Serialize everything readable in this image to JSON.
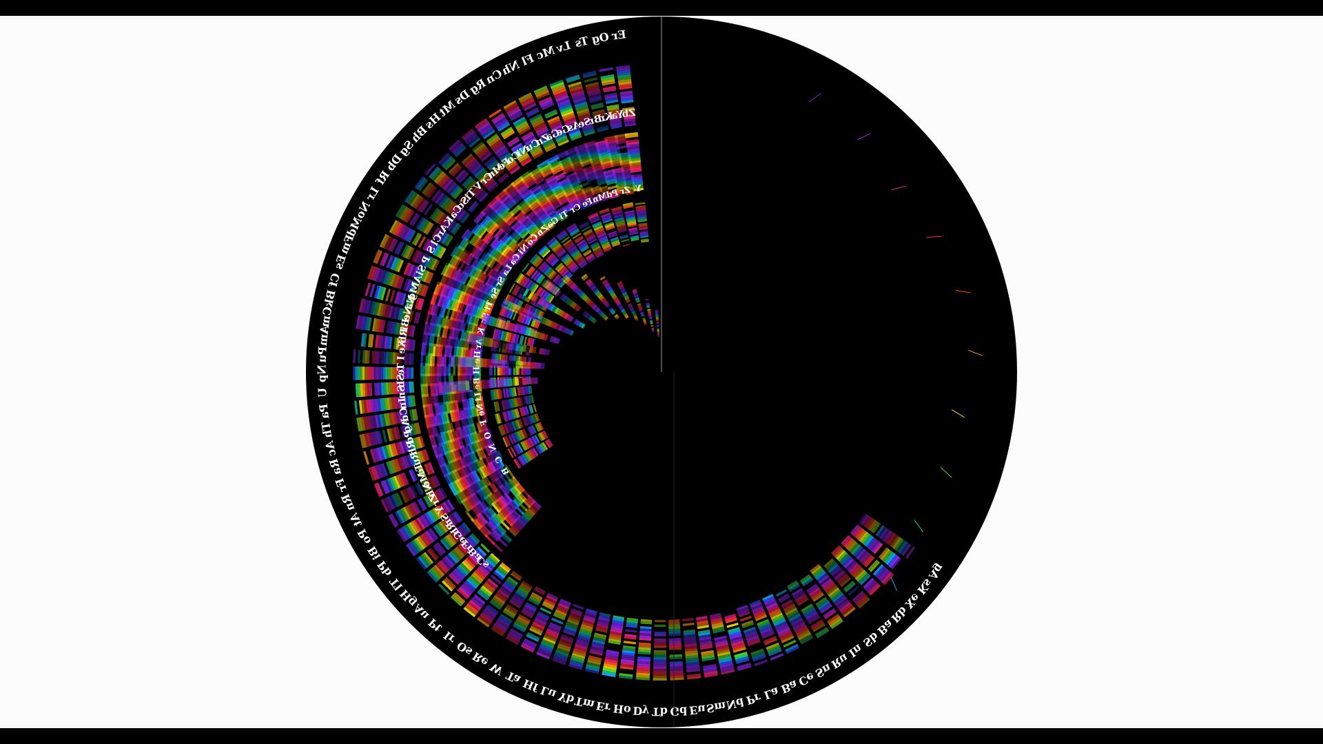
{
  "colors": {
    "page_background": "#fcfcfd",
    "letterbox": "#000000",
    "wheel_background": "#000000",
    "label": "#ffffff",
    "spectrum_palette": [
      "#7a1fd6",
      "#b026e6",
      "#e0249a",
      "#ff1e5a",
      "#ff4a1e",
      "#ff9a10",
      "#f5e214",
      "#5fe01e",
      "#14c98a",
      "#1aa6ff",
      "#2b4dff",
      "#8a2bff"
    ]
  },
  "wheel": {
    "spectra_rendered_as_picture": true,
    "rings": [
      {
        "ring": "outer",
        "labels": [
          "Ag",
          "Ks",
          "Xe",
          "Rb",
          "Ba",
          "Sb",
          "In",
          "Ru",
          "Sn",
          "Ce",
          "Ba",
          "La",
          "Pr",
          "Nd",
          "Sm",
          "Eu",
          "Gd",
          "Tb",
          "Dy",
          "Ho",
          "Er",
          "Tm",
          "Yb",
          "Lu",
          "Hf",
          "Ta",
          "W",
          "Re",
          "Os",
          "Ir",
          "Pt",
          "Au",
          "Hg",
          "Tl",
          "Pb",
          "Bi",
          "Po",
          "At",
          "Rn",
          "Fr",
          "Ra",
          "Ac",
          "Th",
          "Pa",
          "U",
          "Np",
          "Pu",
          "Am",
          "Cm",
          "Bk",
          "Cf",
          "Es",
          "Fm",
          "Md",
          "No",
          "Lr",
          "Rf",
          "Db",
          "Sg",
          "Bh",
          "Hs",
          "Mt",
          "Ds",
          "Rg",
          "Cn",
          "Nh",
          "Fl",
          "Mc",
          "Lv",
          "Ts",
          "Og",
          "Er"
        ]
      },
      {
        "ring": "middle",
        "labels": [
          "Cs",
          "Ba",
          "Fr",
          "Ge",
          "Rb",
          "Sr",
          "Y",
          "Zr",
          "Nb",
          "Mo",
          "Tc",
          "Ru",
          "Rh",
          "Pd",
          "Ag",
          "Cd",
          "In",
          "Sn",
          "Sb",
          "Te",
          "I",
          "Xe",
          "Rb",
          "Bi",
          "Ne",
          "Na",
          "Mg",
          "Al",
          "Si",
          "P",
          "S",
          "Cl",
          "Ar",
          "K",
          "Ca",
          "Sc",
          "Ti",
          "V",
          "Cr",
          "Mn",
          "Fe",
          "Co",
          "Ni",
          "Cu",
          "Zn",
          "Ga",
          "Ge",
          "As",
          "Se",
          "Br",
          "Kr",
          "Ya",
          "Zb"
        ]
      },
      {
        "ring": "inner",
        "labels": [
          "B",
          "C",
          "N",
          "O",
          "F",
          "Ne",
          "Li",
          "Be",
          "H",
          "He",
          "Ar",
          "K",
          "Sc",
          "Ti",
          "Se",
          "Sr",
          "La",
          "Ca",
          "Ni",
          "Co",
          "Zn",
          "Ga",
          "Ti",
          "Cr",
          "Fe",
          "Mn",
          "Pd",
          "Zr",
          "Y"
        ]
      }
    ]
  }
}
